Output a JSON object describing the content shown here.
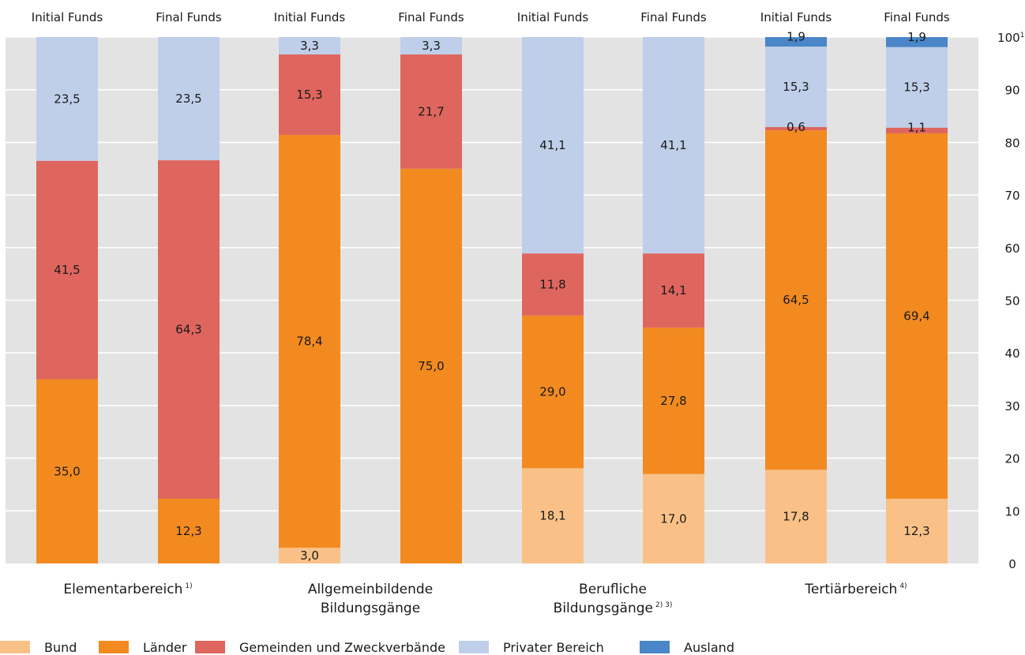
{
  "chart_data": {
    "type": "bar",
    "stacked": true,
    "ylim": [
      0,
      100
    ],
    "yticks": [
      "0",
      "10",
      "20",
      "30",
      "40",
      "50",
      "60",
      "70",
      "80",
      "90",
      "100"
    ],
    "ytick_top_sup": "1)",
    "grid": true,
    "legend_position": "bottom",
    "bar_labels": [
      "Initial Funds",
      "Final Funds",
      "Initial Funds",
      "Final Funds",
      "Initial Funds",
      "Final Funds",
      "Initial Funds",
      "Final Funds"
    ],
    "groups": [
      {
        "label_lines": [
          "Elementarbereich"
        ],
        "sup": "1)"
      },
      {
        "label_lines": [
          "Allgemeinbildende",
          "Bildungsgänge"
        ],
        "sup": ""
      },
      {
        "label_lines": [
          "Berufliche",
          "Bildungsgänge"
        ],
        "sup": "2) 3)"
      },
      {
        "label_lines": [
          "Tertiärbereich"
        ],
        "sup": "4)"
      }
    ],
    "series": [
      {
        "name": "Bund",
        "color": "#f9c187",
        "values": [
          0,
          0,
          3.0,
          0,
          18.1,
          17.0,
          17.8,
          12.3
        ],
        "labels": [
          "",
          "",
          "3,0",
          "",
          "18,1",
          "17,0",
          "17,8",
          "12,3"
        ]
      },
      {
        "name": "Länder",
        "color": "#f28a20",
        "values": [
          35.0,
          12.3,
          78.4,
          75.0,
          29.0,
          27.8,
          64.5,
          69.4
        ],
        "labels": [
          "35,0",
          "12,3",
          "78,4",
          "75,0",
          "29,0",
          "27,8",
          "64,5",
          "69,4"
        ]
      },
      {
        "name": "Gemeinden und Zweckverbände",
        "color": "#de665e",
        "values": [
          41.5,
          64.3,
          15.3,
          21.7,
          11.8,
          14.1,
          0.6,
          1.1
        ],
        "labels": [
          "41,5",
          "64,3",
          "15,3",
          "21,7",
          "11,8",
          "14,1",
          "0,6",
          "1,1"
        ]
      },
      {
        "name": "Privater Bereich",
        "color": "#bfcfe9",
        "values": [
          23.5,
          23.5,
          3.3,
          3.3,
          41.1,
          41.1,
          15.3,
          15.3
        ],
        "labels": [
          "23,5",
          "23,5",
          "3,3",
          "3,3",
          "41,1",
          "41,1",
          "15,3",
          "15,3"
        ]
      },
      {
        "name": "Ausland",
        "color": "#4a86c8",
        "values": [
          0,
          0,
          0,
          0,
          0,
          0,
          1.9,
          1.9
        ],
        "labels": [
          "",
          "",
          "",
          "",
          "",
          "",
          "1,9",
          "1,9"
        ]
      }
    ]
  }
}
